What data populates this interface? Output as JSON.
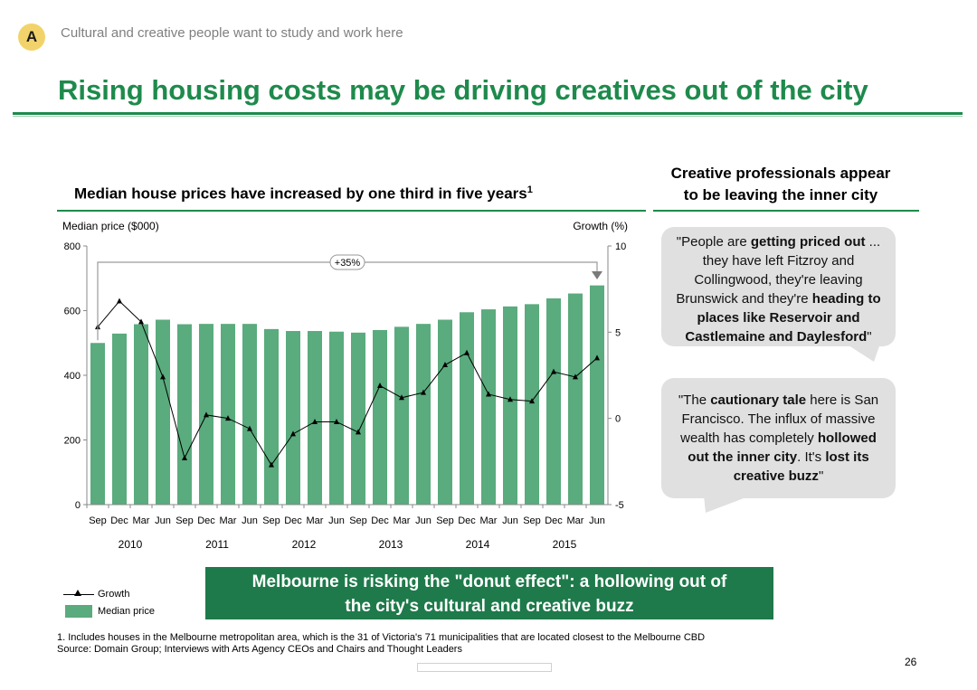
{
  "header": {
    "badge": "A",
    "section_label": "Cultural and creative people want to study and work here",
    "title": "Rising housing costs may be driving creatives out of the city"
  },
  "chart_heading": {
    "text": "Median house prices have increased by one third in five years",
    "footnote_ref": "1"
  },
  "right_panel": {
    "heading_line1": "Creative professionals appear",
    "heading_line2": "to be leaving the inner city",
    "quote1_html": "\"People are <b>getting priced out</b> ... they have left Fitzroy and Collingwood, they're leaving Brunswick and they're <b>heading to places like Reservoir and Castlemaine and Daylesford</b>\"",
    "quote2_html": "\"The <b>cautionary tale</b> here is San Francisco. The influx of massive wealth has completely <b>hollowed out the inner city</b>. It's <b>lost its creative buzz</b>\""
  },
  "callout": {
    "line1": "Melbourne is risking the \"donut effect\": a hollowing out of",
    "line2": "the city's cultural and creative buzz"
  },
  "legend": {
    "growth": "Growth",
    "price": "Median price"
  },
  "footnotes": {
    "line1": "1. Includes houses in the Melbourne metropolitan area, which is the 31 of Victoria's 71 municipalities that are located closest to the Melbourne CBD",
    "line2": "Source: Domain Group; Interviews with Arts Agency CEOs and Chairs and Thought Leaders"
  },
  "page_number": "26",
  "colors": {
    "accent": "#1e8a4c",
    "bar": "#5aab7d",
    "callout_bg": "#1e7a4a",
    "badge": "#f2d36b",
    "quote_bg": "#e0e0e0"
  },
  "chart_data": {
    "type": "bar+line",
    "title": "Median house prices have increased by one third in five years",
    "left_axis_label": "Median price ($000)",
    "right_axis_label": "Growth (%)",
    "left_ylim": [
      0,
      800
    ],
    "left_ticks": [
      0,
      200,
      400,
      600,
      800
    ],
    "right_ylim": [
      -5,
      10
    ],
    "right_ticks": [
      -5,
      0,
      5,
      10
    ],
    "categories": [
      "Sep",
      "Dec",
      "Mar",
      "Jun",
      "Sep",
      "Dec",
      "Mar",
      "Jun",
      "Sep",
      "Dec",
      "Mar",
      "Jun",
      "Sep",
      "Dec",
      "Mar",
      "Jun",
      "Sep",
      "Dec",
      "Mar",
      "Jun",
      "Sep",
      "Dec",
      "Mar",
      "Jun"
    ],
    "years": [
      {
        "label": "2010",
        "start": 0,
        "end": 3
      },
      {
        "label": "2011",
        "start": 4,
        "end": 7
      },
      {
        "label": "2012",
        "start": 8,
        "end": 11
      },
      {
        "label": "2013",
        "start": 12,
        "end": 15
      },
      {
        "label": "2014",
        "start": 16,
        "end": 19
      },
      {
        "label": "2015",
        "start": 20,
        "end": 23
      }
    ],
    "series": [
      {
        "name": "Median price",
        "type": "bar",
        "axis": "left",
        "values": [
          500,
          529,
          558,
          572,
          558,
          559,
          559,
          559,
          543,
          537,
          537,
          535,
          532,
          540,
          550,
          559,
          572,
          595,
          604,
          613,
          620,
          638,
          653,
          678
        ]
      },
      {
        "name": "Growth",
        "type": "line",
        "axis": "right",
        "values": [
          5.3,
          6.8,
          5.6,
          2.4,
          -2.3,
          0.2,
          0.0,
          -0.6,
          -2.7,
          -0.9,
          -0.2,
          -0.2,
          -0.8,
          1.9,
          1.2,
          1.5,
          3.1,
          3.8,
          1.4,
          1.1,
          1.0,
          2.7,
          2.4,
          3.5
        ]
      }
    ],
    "annotation": {
      "label": "+35%",
      "from_index": 0,
      "to_index": 23
    }
  }
}
